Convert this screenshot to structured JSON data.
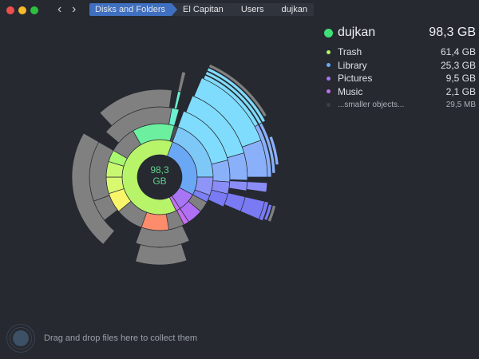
{
  "window": {
    "traffic_lights": [
      "close",
      "minimize",
      "zoom"
    ],
    "nav": {
      "back": "‹",
      "forward": "›"
    }
  },
  "breadcrumb": [
    {
      "label": "Disks and Folders"
    },
    {
      "label": "El Capitan"
    },
    {
      "label": "Users"
    },
    {
      "label": "dujkan"
    }
  ],
  "legend": {
    "title": "dujkan",
    "title_size": "98,3 GB",
    "title_color": "#3fe07a",
    "items": [
      {
        "label": "Trash",
        "size": "61,4 GB",
        "color": "#b8f46a"
      },
      {
        "label": "Library",
        "size": "25,3 GB",
        "color": "#6aa8f5"
      },
      {
        "label": "Pictures",
        "size": "9,5 GB",
        "color": "#a875f5"
      },
      {
        "label": "Music",
        "size": "2,1 GB",
        "color": "#c46ef0"
      },
      {
        "label": "...smaller objects...",
        "size": "29,5  MB",
        "color": "#3a3e46"
      }
    ]
  },
  "center": {
    "line1": "98,3",
    "line2": "GB"
  },
  "dropzone": {
    "text": "Drag and drop files here to collect them"
  },
  "chart_data": {
    "type": "sunburst",
    "center_label": "98,3 GB",
    "root": "dujkan",
    "series": [
      {
        "name": "Trash",
        "value_gb": 61.4
      },
      {
        "name": "Library",
        "value_gb": 25.3
      },
      {
        "name": "Pictures",
        "value_gb": 9.5
      },
      {
        "name": "Music",
        "value_gb": 2.1
      },
      {
        "name": "...smaller objects...",
        "value_mb": 29.5
      }
    ],
    "cx": 200,
    "cy": 222,
    "segments": [
      {
        "r0": 28,
        "r1": 47,
        "a0": 20,
        "a1": 118,
        "c": "#6aa8f5"
      },
      {
        "r0": 28,
        "r1": 47,
        "a0": 118,
        "a1": 147,
        "c": "#a875f5"
      },
      {
        "r0": 28,
        "r1": 47,
        "a0": 147,
        "a1": 154,
        "c": "#c46ef0"
      },
      {
        "r0": 28,
        "r1": 47,
        "a0": 154,
        "a1": 380,
        "c": "#b8f46a"
      },
      {
        "r0": 47,
        "r1": 67,
        "a0": 20,
        "a1": 90,
        "c": "#7ec8f8"
      },
      {
        "r0": 47,
        "r1": 67,
        "a0": 90,
        "a1": 110,
        "c": "#8f94f8"
      },
      {
        "r0": 47,
        "r1": 67,
        "a0": 110,
        "a1": 118,
        "c": "#7d7ff5"
      },
      {
        "r0": 47,
        "r1": 67,
        "a0": 118,
        "a1": 147,
        "c": "#b070f5"
      },
      {
        "r0": 47,
        "r1": 67,
        "a0": 147,
        "a1": 153,
        "c": "#c46ef0"
      },
      {
        "r0": 47,
        "r1": 67,
        "a0": 118,
        "a1": 130,
        "c": "#808080"
      },
      {
        "r0": 47,
        "r1": 67,
        "a0": 130,
        "a1": 147,
        "c": "#b070f5"
      },
      {
        "r0": 47,
        "r1": 67,
        "a0": 153,
        "a1": 230,
        "c": "#808080"
      },
      {
        "r0": 47,
        "r1": 67,
        "a0": 170,
        "a1": 200,
        "c": "#fc8c6c"
      },
      {
        "r0": 47,
        "r1": 67,
        "a0": 230,
        "a1": 252,
        "c": "#f9f56a"
      },
      {
        "r0": 47,
        "r1": 67,
        "a0": 252,
        "a1": 270,
        "c": "#d8f870"
      },
      {
        "r0": 47,
        "r1": 67,
        "a0": 270,
        "a1": 287,
        "c": "#c8f870"
      },
      {
        "r0": 47,
        "r1": 67,
        "a0": 287,
        "a1": 300,
        "c": "#a8f870"
      },
      {
        "r0": 47,
        "r1": 67,
        "a0": 300,
        "a1": 330,
        "c": "#808080"
      },
      {
        "r0": 47,
        "r1": 67,
        "a0": 330,
        "a1": 376,
        "c": "#6cf0a0"
      },
      {
        "r0": 47,
        "r1": 67,
        "a0": 376,
        "a1": 380,
        "c": "#4a505a"
      },
      {
        "r0": 67,
        "r1": 88,
        "a0": 20,
        "a1": 76,
        "c": "#80dcfc"
      },
      {
        "r0": 67,
        "r1": 88,
        "a0": 76,
        "a1": 94,
        "c": "#8ab0fa"
      },
      {
        "r0": 67,
        "r1": 88,
        "a0": 94,
        "a1": 104,
        "c": "#8a8cf8"
      },
      {
        "r0": 67,
        "r1": 88,
        "a0": 104,
        "a1": 115,
        "c": "#7a7af5"
      },
      {
        "r0": 67,
        "r1": 88,
        "a0": 155,
        "a1": 200,
        "c": "#808080"
      },
      {
        "r0": 67,
        "r1": 88,
        "a0": 232,
        "a1": 250,
        "c": "#808080"
      },
      {
        "r0": 67,
        "r1": 88,
        "a0": 250,
        "a1": 300,
        "c": "#808080"
      },
      {
        "r0": 67,
        "r1": 88,
        "a0": 310,
        "a1": 370,
        "c": "#808080"
      },
      {
        "r0": 67,
        "r1": 88,
        "a0": 370,
        "a1": 376,
        "c": "#6cf0d0"
      },
      {
        "r0": 88,
        "r1": 110,
        "a0": 22,
        "a1": 74,
        "c": "#80dcfc"
      },
      {
        "r0": 88,
        "r1": 110,
        "a0": 74,
        "a1": 92,
        "c": "#8ab0fa"
      },
      {
        "r0": 88,
        "r1": 110,
        "a0": 93,
        "a1": 99,
        "c": "#8a8cf8"
      },
      {
        "r0": 88,
        "r1": 110,
        "a0": 103,
        "a1": 113,
        "c": "#7a7af5"
      },
      {
        "r0": 88,
        "r1": 110,
        "a0": 162,
        "a1": 196,
        "c": "#808080"
      },
      {
        "r0": 88,
        "r1": 110,
        "a0": 220,
        "a1": 300,
        "c": "#808080"
      },
      {
        "r0": 88,
        "r1": 110,
        "a0": 317,
        "a1": 368,
        "c": "#808080"
      },
      {
        "r0": 88,
        "r1": 110,
        "a0": 372,
        "a1": 374,
        "c": "#6cf0d0"
      },
      {
        "r0": 110,
        "r1": 135,
        "a0": 23,
        "a1": 70,
        "c": "#80dcfc"
      },
      {
        "r0": 110,
        "r1": 135,
        "a0": 70,
        "a1": 90,
        "c": "#8ab0fa"
      },
      {
        "r0": 110,
        "r1": 135,
        "a0": 93,
        "a1": 98,
        "c": "#8a8cf8"
      },
      {
        "r0": 110,
        "r1": 135,
        "a0": 103,
        "a1": 113,
        "c": "#7a7af5"
      },
      {
        "r0": 110,
        "r1": 135,
        "a0": 372,
        "a1": 374,
        "c": "#808080"
      },
      {
        "r0": 135,
        "r1": 140,
        "a0": 24,
        "a1": 62,
        "c": "#80dcfc"
      },
      {
        "r0": 141,
        "r1": 145,
        "a0": 24,
        "a1": 62,
        "c": "#80dcfc"
      },
      {
        "r0": 146,
        "r1": 150,
        "a0": 24,
        "a1": 62,
        "c": "#80dcfc"
      },
      {
        "r0": 151,
        "r1": 155,
        "a0": 24,
        "a1": 60,
        "c": "#808080"
      },
      {
        "r0": 135,
        "r1": 140,
        "a0": 62,
        "a1": 90,
        "c": "#8ab0fa"
      },
      {
        "r0": 141,
        "r1": 145,
        "a0": 62,
        "a1": 88,
        "c": "#8ab0fa"
      },
      {
        "r0": 146,
        "r1": 150,
        "a0": 70,
        "a1": 84,
        "c": "#8ab0fa"
      },
      {
        "r0": 135,
        "r1": 140,
        "a0": 103,
        "a1": 113,
        "c": "#7a7af5"
      },
      {
        "r0": 141,
        "r1": 145,
        "a0": 104,
        "a1": 112,
        "c": "#7a7af5"
      },
      {
        "r0": 146,
        "r1": 150,
        "a0": 104,
        "a1": 112,
        "c": "#808080"
      }
    ]
  }
}
